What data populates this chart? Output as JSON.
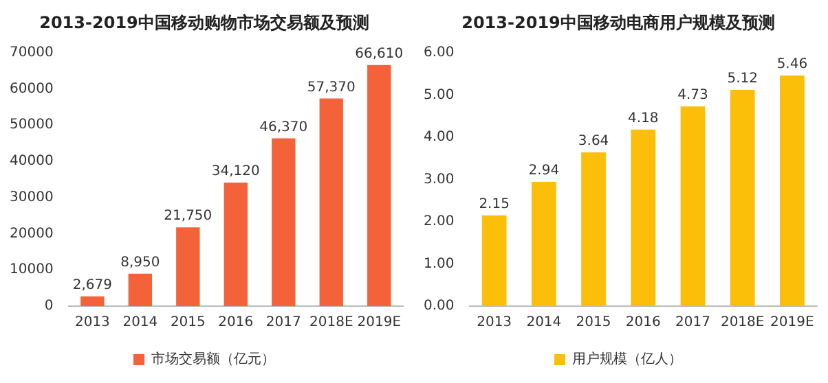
{
  "chart_data": [
    {
      "type": "bar",
      "title": "2013-2019中国移动购物市场交易额及预测",
      "categories": [
        "2013",
        "2014",
        "2015",
        "2016",
        "2017",
        "2018E",
        "2019E"
      ],
      "series": [
        {
          "name": "市场交易额（亿元）",
          "color": "#f4623a",
          "values": [
            2679,
            8950,
            21750,
            34120,
            46370,
            57370,
            66610
          ],
          "value_labels": [
            "2,679",
            "8,950",
            "21,750",
            "34,120",
            "46,370",
            "57,370",
            "66,610"
          ]
        }
      ],
      "ylim": [
        0,
        70000
      ],
      "yticks": [
        0,
        10000,
        20000,
        30000,
        40000,
        50000,
        60000,
        70000
      ],
      "legend": "bottom"
    },
    {
      "type": "bar",
      "title": "2013-2019中国移动电商用户规模及预测",
      "categories": [
        "2013",
        "2014",
        "2015",
        "2016",
        "2017",
        "2018E",
        "2019E"
      ],
      "series": [
        {
          "name": "用户规模（亿人）",
          "color": "#fbbf0a",
          "values": [
            2.15,
            2.94,
            3.64,
            4.18,
            4.73,
            5.12,
            5.46
          ]
        }
      ],
      "ylim": [
        0,
        6
      ],
      "yticks": [
        {
          "value": 0,
          "label": "0.00"
        },
        {
          "value": 1,
          "label": "1.00"
        },
        {
          "value": 2,
          "label": "2.00"
        },
        {
          "value": 3,
          "label": "3.00"
        },
        {
          "value": 4,
          "label": "4.00"
        },
        {
          "value": 5,
          "label": "5.00"
        },
        {
          "value": 6,
          "label": "6.00"
        }
      ],
      "legend": "bottom",
      "data_labels": true
    }
  ]
}
